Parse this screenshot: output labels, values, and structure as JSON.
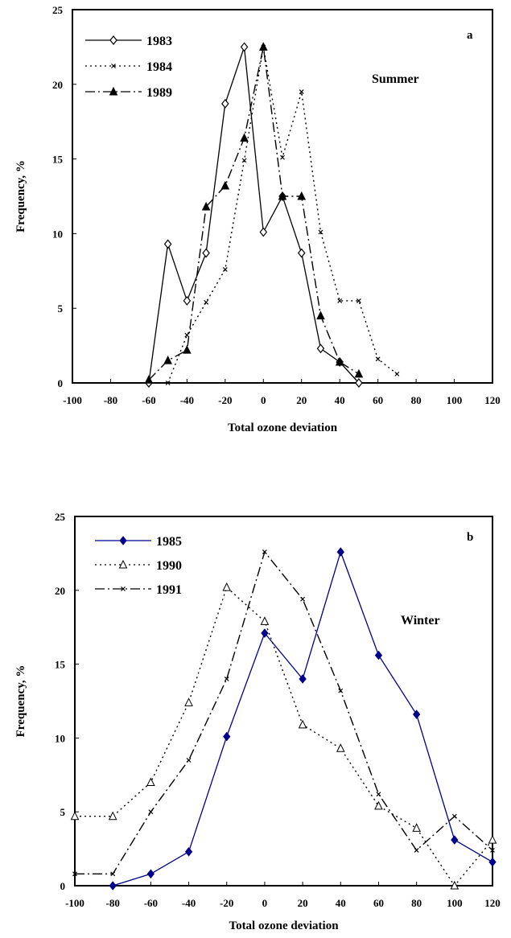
{
  "chart_data": [
    {
      "panel": "a",
      "season": "Summer",
      "type": "line",
      "xlabel": "Total ozone deviation",
      "ylabel": "Frequency, %",
      "xlim": [
        -100,
        120
      ],
      "ylim": [
        0,
        25
      ],
      "xticks": [
        "-100",
        "-80",
        "-60",
        "-40",
        "-20",
        "0",
        "20",
        "40",
        "60",
        "80",
        "100",
        "120"
      ],
      "yticks": [
        "0",
        "5",
        "10",
        "15",
        "20",
        "25"
      ],
      "legend_position": "top-left",
      "series": [
        {
          "name": "1983",
          "style": "solid",
          "marker": "diamond-open",
          "x": [
            -60,
            -50,
            -40,
            -30,
            -20,
            -10,
            0,
            10,
            20,
            30,
            40,
            50
          ],
          "y": [
            0,
            9.3,
            5.5,
            8.7,
            18.7,
            22.5,
            10.1,
            12.5,
            8.7,
            2.3,
            1.4,
            0
          ]
        },
        {
          "name": "1984",
          "style": "dotted",
          "marker": "cross",
          "x": [
            -50,
            -40,
            -30,
            -20,
            -10,
            0,
            10,
            20,
            30,
            40,
            50,
            60,
            70
          ],
          "y": [
            0,
            3.2,
            5.4,
            7.6,
            14.9,
            22.5,
            15.1,
            19.5,
            10.1,
            5.5,
            5.5,
            1.6,
            0.6
          ]
        },
        {
          "name": "1989",
          "style": "dashdot",
          "marker": "triangle-filled",
          "x": [
            -60,
            -50,
            -40,
            -30,
            -20,
            -10,
            0,
            10,
            20,
            30,
            40,
            50
          ],
          "y": [
            0.2,
            1.5,
            2.2,
            11.8,
            13.2,
            16.4,
            22.5,
            12.5,
            12.5,
            4.5,
            1.4,
            0.6
          ]
        }
      ]
    },
    {
      "panel": "b",
      "season": "Winter",
      "type": "line",
      "xlabel": "Total ozone deviation",
      "ylabel": "Frequency, %",
      "xlim": [
        -100,
        120
      ],
      "ylim": [
        0,
        25
      ],
      "xticks": [
        "-100",
        "-80",
        "-60",
        "-40",
        "-20",
        "0",
        "20",
        "40",
        "60",
        "80",
        "100",
        "120"
      ],
      "yticks": [
        "0",
        "5",
        "10",
        "15",
        "20",
        "25"
      ],
      "legend_position": "top-left",
      "series": [
        {
          "name": "1985",
          "style": "solid",
          "marker": "diamond-filled",
          "color": "#00008b",
          "x": [
            -80,
            -60,
            -40,
            -20,
            0,
            20,
            40,
            60,
            80,
            100,
            120
          ],
          "y": [
            0,
            0.8,
            2.3,
            10.1,
            17.1,
            14.0,
            22.6,
            15.6,
            11.6,
            3.1,
            1.6
          ]
        },
        {
          "name": "1990",
          "style": "dotted",
          "marker": "triangle-open",
          "x": [
            -100,
            -80,
            -60,
            -40,
            -20,
            0,
            20,
            40,
            60,
            80,
            100,
            120
          ],
          "y": [
            4.7,
            4.7,
            7.0,
            12.4,
            20.2,
            17.9,
            10.9,
            9.3,
            5.4,
            3.9,
            0,
            3.1
          ]
        },
        {
          "name": "1991",
          "style": "dashdot",
          "marker": "cross",
          "x": [
            -100,
            -80,
            -60,
            -40,
            -20,
            0,
            20,
            40,
            60,
            80,
            100,
            120
          ],
          "y": [
            0.8,
            0.8,
            5.0,
            8.5,
            14.0,
            22.6,
            19.4,
            13.2,
            6.2,
            2.4,
            4.7,
            2.4
          ]
        }
      ]
    }
  ]
}
